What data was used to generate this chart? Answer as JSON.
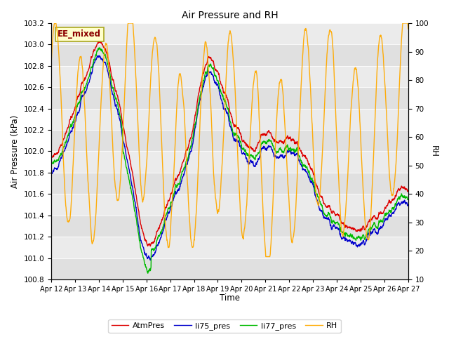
{
  "title": "Air Pressure and RH",
  "xlabel": "Time",
  "ylabel_left": "Air Pressure (kPa)",
  "ylabel_right": "RH",
  "annotation": "EE_mixed",
  "ylim_left": [
    100.8,
    103.2
  ],
  "ylim_right": [
    10,
    100
  ],
  "yticks_left": [
    100.8,
    101.0,
    101.2,
    101.4,
    101.6,
    101.8,
    102.0,
    102.2,
    102.4,
    102.6,
    102.8,
    103.0,
    103.2
  ],
  "yticks_right": [
    10,
    20,
    30,
    40,
    50,
    60,
    70,
    80,
    90,
    100
  ],
  "fig_bg_color": "#ffffff",
  "plot_bg_color": "#ffffff",
  "band_color_dark": "#e0e0e0",
  "band_color_light": "#ebebeb",
  "colors": {
    "AtmPres": "#dd0000",
    "li75_pres": "#0000cc",
    "li77_pres": "#00bb00",
    "RH": "#ffaa00"
  },
  "legend_labels": [
    "AtmPres",
    "li75_pres",
    "li77_pres",
    "RH"
  ],
  "x_tick_labels": [
    "Apr 12",
    "Apr 13",
    "Apr 14",
    "Apr 15",
    "Apr 16",
    "Apr 17",
    "Apr 18",
    "Apr 19",
    "Apr 20",
    "Apr 21",
    "Apr 22",
    "Apr 23",
    "Apr 24",
    "Apr 25",
    "Apr 26",
    "Apr 27"
  ],
  "num_points": 1500,
  "seed": 99
}
